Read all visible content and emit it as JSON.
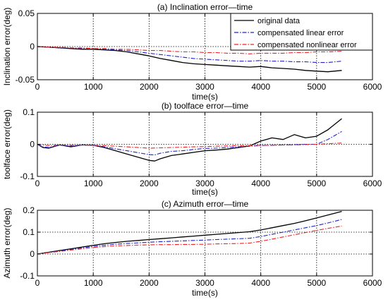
{
  "chart_data": [
    {
      "type": "line",
      "title": "(a) Inclination error—time",
      "xlabel": "time(s)",
      "ylabel": "Inclination error(deg)",
      "xlim": [
        0,
        6000
      ],
      "ylim": [
        -0.05,
        0.05
      ],
      "xticks": [
        0,
        1000,
        2000,
        3000,
        4000,
        5000,
        6000
      ],
      "xtick_labels": [
        "0",
        "1000",
        "2000",
        "3000",
        "4000",
        "5000",
        "6000"
      ],
      "yticks": [
        -0.05,
        0,
        0.05
      ],
      "ytick_labels": [
        "-0.05",
        "0",
        "0.05"
      ],
      "grid": true,
      "legend_position": "top-right",
      "series": [
        {
          "name": "original data",
          "color": "#000000",
          "style": "solid",
          "x": [
            0,
            200,
            400,
            600,
            800,
            1000,
            1200,
            1400,
            1600,
            1800,
            2000,
            2200,
            2400,
            2600,
            2800,
            3000,
            3200,
            3400,
            3600,
            3800,
            4000,
            4200,
            4400,
            4600,
            4800,
            5000,
            5200,
            5450
          ],
          "y": [
            0,
            -0.001,
            -0.002,
            -0.003,
            -0.004,
            -0.004,
            -0.005,
            -0.006,
            -0.008,
            -0.011,
            -0.014,
            -0.018,
            -0.021,
            -0.024,
            -0.026,
            -0.027,
            -0.028,
            -0.029,
            -0.03,
            -0.031,
            -0.03,
            -0.032,
            -0.033,
            -0.034,
            -0.036,
            -0.037,
            -0.038,
            -0.036
          ]
        },
        {
          "name": "compensated linear error",
          "color": "#2222cc",
          "style": "dashdot",
          "x": [
            0,
            200,
            400,
            600,
            800,
            1000,
            1200,
            1400,
            1600,
            1800,
            2000,
            2200,
            2400,
            2600,
            2800,
            3000,
            3200,
            3400,
            3600,
            3800,
            4000,
            4200,
            4400,
            4600,
            4800,
            5000,
            5200,
            5450
          ],
          "y": [
            0,
            -0.001,
            -0.002,
            -0.002,
            -0.003,
            -0.003,
            -0.004,
            -0.005,
            -0.006,
            -0.008,
            -0.01,
            -0.012,
            -0.014,
            -0.016,
            -0.018,
            -0.019,
            -0.02,
            -0.021,
            -0.022,
            -0.022,
            -0.021,
            -0.022,
            -0.022,
            -0.023,
            -0.023,
            -0.024,
            -0.024,
            -0.022
          ]
        },
        {
          "name": "compensated nonlinear error",
          "color": "#ee2222",
          "style": "dashdot",
          "x": [
            0,
            200,
            400,
            600,
            800,
            1000,
            1200,
            1400,
            1600,
            1800,
            2000,
            2200,
            2400,
            2600,
            2800,
            3000,
            3200,
            3400,
            3600,
            3800,
            4000,
            4200,
            4400,
            4600,
            4800,
            5000,
            5200,
            5450
          ],
          "y": [
            0,
            -0.001,
            -0.001,
            -0.002,
            -0.002,
            -0.003,
            -0.003,
            -0.004,
            -0.004,
            -0.005,
            -0.006,
            -0.006,
            -0.007,
            -0.008,
            -0.008,
            -0.009,
            -0.009,
            -0.01,
            -0.01,
            -0.011,
            -0.01,
            -0.01,
            -0.01,
            -0.009,
            -0.009,
            -0.008,
            -0.008,
            -0.007
          ]
        }
      ]
    },
    {
      "type": "line",
      "title": "(b) toolface error—time",
      "xlabel": "time(s)",
      "ylabel": "toolface error(deg)",
      "xlim": [
        0,
        6000
      ],
      "ylim": [
        -0.1,
        0.1
      ],
      "xticks": [
        0,
        1000,
        2000,
        3000,
        4000,
        5000,
        6000
      ],
      "xtick_labels": [
        "0",
        "1000",
        "2000",
        "3000",
        "4000",
        "5000",
        "6000"
      ],
      "yticks": [
        -0.1,
        0,
        0.1
      ],
      "ytick_labels": [
        "-0.1",
        "0",
        "0.1"
      ],
      "grid": true,
      "series": [
        {
          "name": "original data",
          "color": "#000000",
          "style": "solid",
          "x": [
            0,
            100,
            200,
            400,
            600,
            800,
            1000,
            1200,
            1400,
            1600,
            1800,
            2000,
            2100,
            2200,
            2400,
            2600,
            2800,
            3000,
            3200,
            3400,
            3600,
            3800,
            4000,
            4200,
            4400,
            4600,
            4800,
            5000,
            5200,
            5450
          ],
          "y": [
            0,
            -0.01,
            -0.012,
            -0.002,
            -0.008,
            -0.002,
            -0.003,
            -0.01,
            -0.02,
            -0.03,
            -0.04,
            -0.05,
            -0.052,
            -0.045,
            -0.035,
            -0.03,
            -0.025,
            -0.02,
            -0.018,
            -0.015,
            -0.01,
            -0.005,
            0.01,
            0.02,
            0.015,
            0.03,
            0.02,
            0.025,
            0.045,
            0.08
          ]
        },
        {
          "name": "compensated linear error",
          "color": "#2222cc",
          "style": "dashdot",
          "x": [
            0,
            100,
            200,
            400,
            600,
            800,
            1000,
            1200,
            1400,
            1600,
            1800,
            2000,
            2100,
            2200,
            2400,
            2600,
            2800,
            3000,
            3200,
            3400,
            3600,
            3800,
            4000,
            4200,
            4400,
            4600,
            4800,
            5000,
            5200,
            5450
          ],
          "y": [
            0,
            -0.008,
            -0.01,
            -0.002,
            -0.006,
            -0.002,
            -0.003,
            -0.008,
            -0.014,
            -0.02,
            -0.026,
            -0.032,
            -0.033,
            -0.028,
            -0.022,
            -0.02,
            -0.016,
            -0.013,
            -0.012,
            -0.01,
            -0.008,
            -0.006,
            -0.004,
            -0.003,
            -0.002,
            -0.001,
            0,
            0,
            0.015,
            0.04
          ]
        },
        {
          "name": "compensated nonlinear error",
          "color": "#ee2222",
          "style": "dashdot",
          "x": [
            0,
            200,
            400,
            600,
            800,
            1000,
            1200,
            1400,
            1600,
            1800,
            2000,
            2200,
            2400,
            2600,
            2800,
            3000,
            3200,
            3400,
            3600,
            3800,
            4000,
            4200,
            4400,
            4600,
            4800,
            5000,
            5200,
            5450
          ],
          "y": [
            0,
            -0.004,
            -0.002,
            -0.003,
            -0.002,
            -0.003,
            -0.004,
            -0.006,
            -0.008,
            -0.01,
            -0.012,
            -0.011,
            -0.01,
            -0.009,
            -0.008,
            -0.007,
            -0.006,
            -0.005,
            -0.004,
            -0.004,
            -0.003,
            -0.003,
            -0.002,
            -0.002,
            -0.001,
            0,
            0.002,
            0.004
          ]
        }
      ]
    },
    {
      "type": "line",
      "title": "(c) Azimuth error—time",
      "xlabel": "time(s)",
      "ylabel": "Azimuth error(deg)",
      "xlim": [
        0,
        6000
      ],
      "ylim": [
        -0.1,
        0.2
      ],
      "xticks": [
        0,
        1000,
        2000,
        3000,
        4000,
        5000,
        6000
      ],
      "xtick_labels": [
        "0",
        "1000",
        "2000",
        "3000",
        "4000",
        "5000",
        "6000"
      ],
      "yticks": [
        -0.1,
        0,
        0.1,
        0.2
      ],
      "ytick_labels": [
        "-0.1",
        "0",
        "0.1",
        "0.2"
      ],
      "grid": true,
      "series": [
        {
          "name": "original data",
          "color": "#000000",
          "style": "solid",
          "x": [
            0,
            200,
            400,
            600,
            800,
            1000,
            1200,
            1400,
            1600,
            1800,
            2000,
            2200,
            2400,
            2600,
            2800,
            3000,
            3200,
            3400,
            3600,
            3800,
            4000,
            4200,
            4400,
            4600,
            4800,
            5000,
            5200,
            5450
          ],
          "y": [
            0,
            0.008,
            0.016,
            0.024,
            0.032,
            0.04,
            0.047,
            0.053,
            0.058,
            0.062,
            0.066,
            0.07,
            0.074,
            0.078,
            0.082,
            0.086,
            0.09,
            0.094,
            0.098,
            0.102,
            0.11,
            0.12,
            0.13,
            0.14,
            0.152,
            0.165,
            0.178,
            0.195
          ]
        },
        {
          "name": "compensated linear error",
          "color": "#2222cc",
          "style": "dashdot",
          "x": [
            0,
            200,
            400,
            600,
            800,
            1000,
            1200,
            1400,
            1600,
            1800,
            2000,
            2200,
            2400,
            2600,
            2800,
            3000,
            3200,
            3400,
            3600,
            3800,
            4000,
            4200,
            4400,
            4600,
            4800,
            5000,
            5200,
            5450
          ],
          "y": [
            0,
            0.007,
            0.014,
            0.021,
            0.028,
            0.035,
            0.04,
            0.045,
            0.048,
            0.051,
            0.054,
            0.056,
            0.058,
            0.06,
            0.062,
            0.064,
            0.066,
            0.068,
            0.07,
            0.072,
            0.08,
            0.09,
            0.1,
            0.11,
            0.12,
            0.13,
            0.142,
            0.158
          ]
        },
        {
          "name": "compensated nonlinear error",
          "color": "#ee2222",
          "style": "dashdot",
          "x": [
            0,
            200,
            400,
            600,
            800,
            1000,
            1200,
            1400,
            1600,
            1800,
            2000,
            2200,
            2400,
            2600,
            2800,
            3000,
            3200,
            3400,
            3600,
            3800,
            4000,
            4200,
            4400,
            4600,
            4800,
            5000,
            5200,
            5450
          ],
          "y": [
            0,
            0.006,
            0.012,
            0.018,
            0.024,
            0.03,
            0.034,
            0.037,
            0.039,
            0.041,
            0.042,
            0.043,
            0.043,
            0.044,
            0.044,
            0.045,
            0.046,
            0.047,
            0.048,
            0.05,
            0.058,
            0.068,
            0.078,
            0.088,
            0.098,
            0.108,
            0.117,
            0.128
          ]
        }
      ]
    }
  ]
}
